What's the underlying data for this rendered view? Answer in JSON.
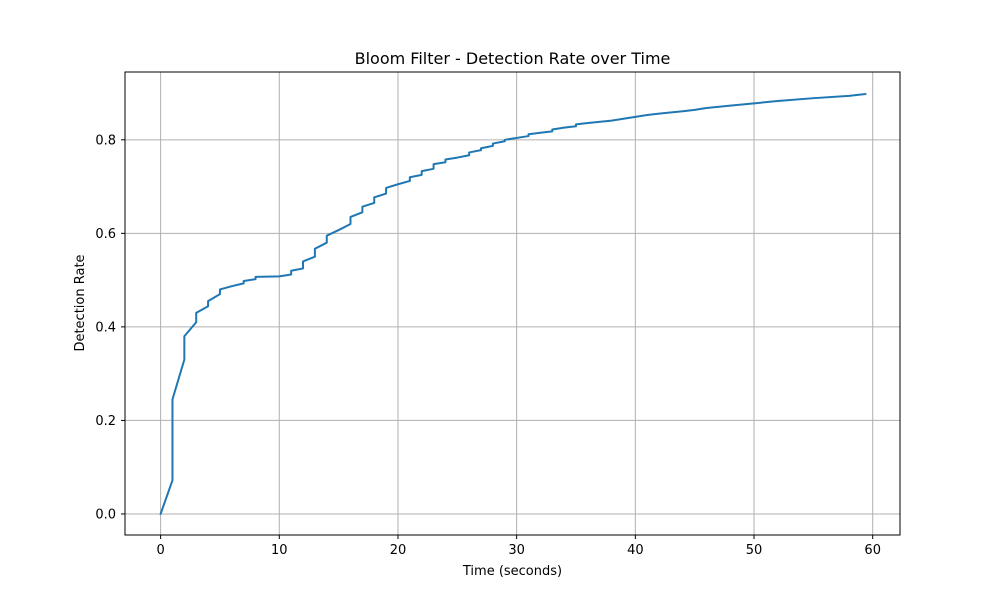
{
  "chart_data": {
    "type": "line",
    "title": "Bloom Filter - Detection Rate over Time",
    "xlabel": "Time (seconds)",
    "ylabel": "Detection Rate",
    "xlim": [
      -3,
      62.3
    ],
    "ylim": [
      -0.045,
      0.945
    ],
    "xticks": [
      0,
      10,
      20,
      30,
      40,
      50,
      60
    ],
    "xtick_labels": [
      "0",
      "10",
      "20",
      "30",
      "40",
      "50",
      "60"
    ],
    "yticks": [
      0.0,
      0.2,
      0.4,
      0.6,
      0.8
    ],
    "ytick_labels": [
      "0.0",
      "0.2",
      "0.4",
      "0.6",
      "0.8"
    ],
    "grid": true,
    "series": [
      {
        "color": "#1f77b4",
        "x": [
          0,
          1,
          1,
          2,
          2,
          3,
          3,
          4,
          4,
          5,
          5,
          6,
          7,
          7,
          8,
          8,
          10,
          11,
          11,
          12,
          12,
          13,
          13,
          14,
          14,
          15,
          16,
          16,
          17,
          17,
          18,
          18,
          19,
          19,
          20,
          21,
          21,
          22,
          22,
          23,
          23,
          24,
          24,
          25,
          26,
          26,
          27,
          27,
          28,
          28,
          29,
          29,
          30,
          31,
          31,
          32,
          33,
          33,
          34,
          35,
          35,
          36,
          38,
          39,
          40,
          41,
          42,
          44,
          45,
          46,
          48,
          50,
          52,
          55,
          58,
          59.4
        ],
        "y": [
          0.0,
          0.072,
          0.245,
          0.33,
          0.38,
          0.41,
          0.43,
          0.444,
          0.455,
          0.47,
          0.48,
          0.487,
          0.493,
          0.498,
          0.502,
          0.507,
          0.508,
          0.512,
          0.52,
          0.525,
          0.54,
          0.55,
          0.567,
          0.58,
          0.595,
          0.607,
          0.62,
          0.635,
          0.645,
          0.657,
          0.665,
          0.677,
          0.685,
          0.697,
          0.705,
          0.712,
          0.72,
          0.725,
          0.733,
          0.738,
          0.748,
          0.752,
          0.758,
          0.762,
          0.767,
          0.773,
          0.778,
          0.782,
          0.787,
          0.792,
          0.797,
          0.8,
          0.804,
          0.808,
          0.812,
          0.815,
          0.818,
          0.822,
          0.826,
          0.829,
          0.833,
          0.836,
          0.841,
          0.845,
          0.849,
          0.853,
          0.856,
          0.861,
          0.864,
          0.868,
          0.873,
          0.878,
          0.883,
          0.889,
          0.894,
          0.898
        ]
      }
    ]
  }
}
